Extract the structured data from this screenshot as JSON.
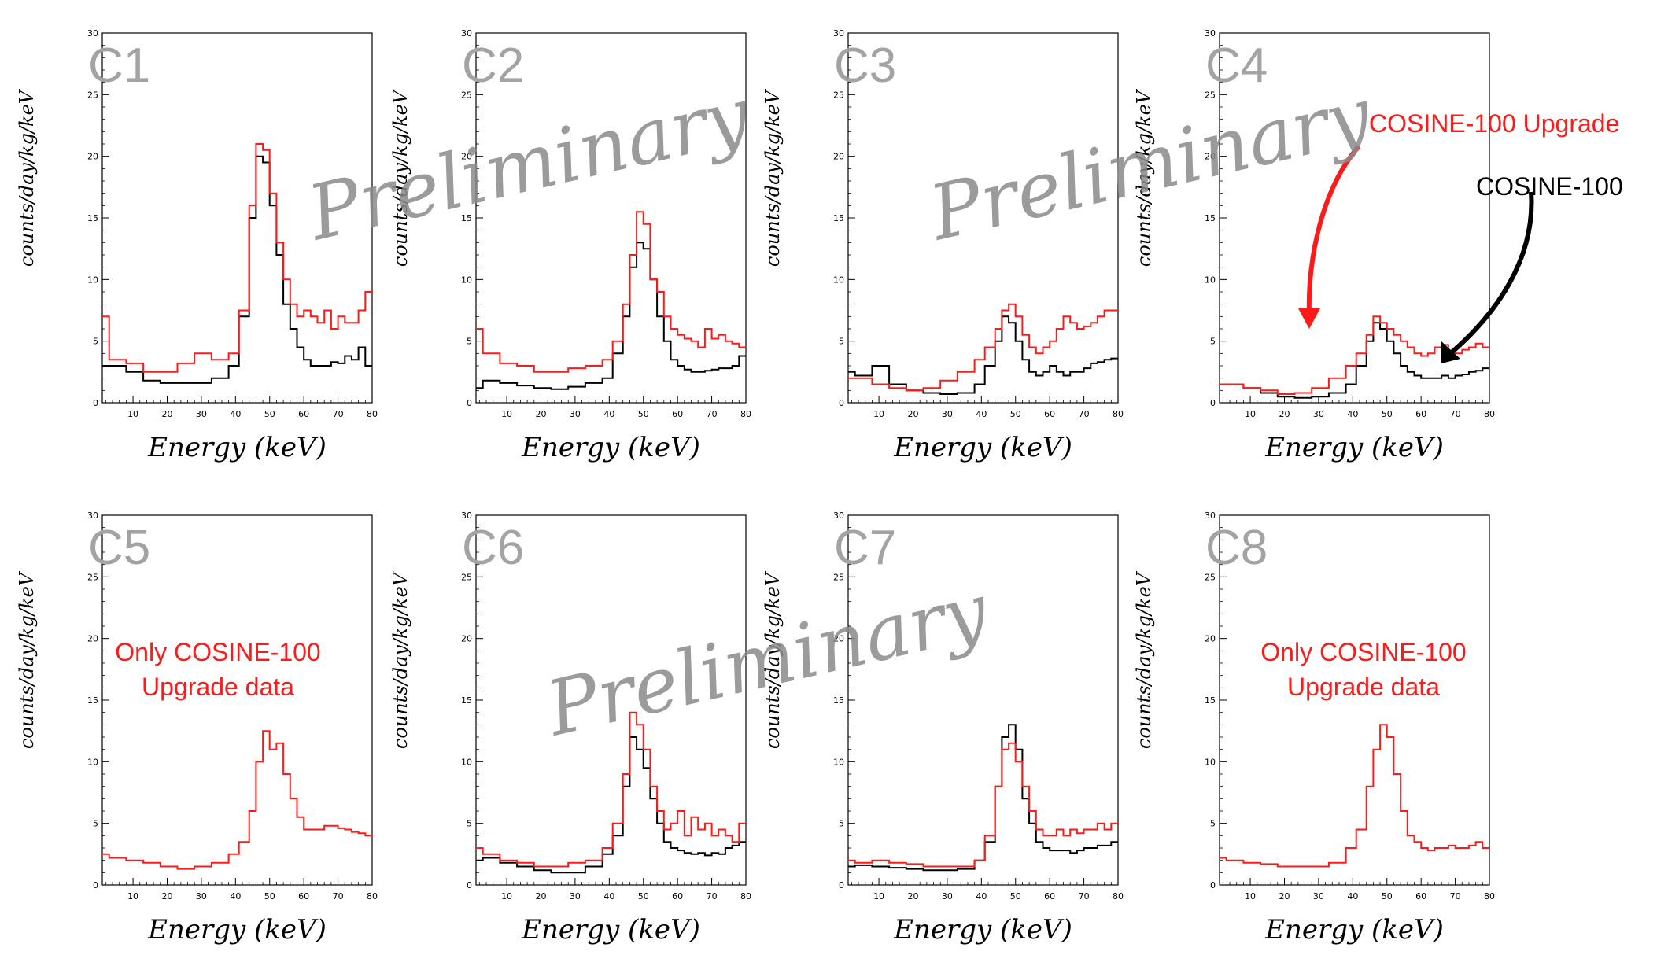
{
  "figure": {
    "watermark_text": "Preliminary",
    "annotations": {
      "upgrade_label": "COSINE-100 Upgrade",
      "cosine_label": "COSINE-100",
      "only_upgrade_line1": "Only COSINE-100",
      "only_upgrade_line2": "Upgrade data"
    },
    "colors": {
      "upgrade": "#ff1a1a",
      "cosine100": "#000000",
      "panel_label": "#a3a3a3",
      "watermark": "#8a8a8a"
    }
  },
  "chart_data": [
    {
      "type": "line",
      "style": "step",
      "title": "C1",
      "xlabel": "Energy   (keV)",
      "ylabel": "counts/day/kg/keV",
      "xlim": [
        1,
        80
      ],
      "ylim": [
        0,
        30
      ],
      "xticks": [
        10,
        20,
        30,
        40,
        50,
        60,
        70,
        80
      ],
      "yticks": [
        0,
        5,
        10,
        15,
        20,
        25,
        30
      ],
      "series": [
        {
          "name": "COSINE-100 Upgrade",
          "color": "#ff1a1a",
          "x": [
            3,
            8,
            13,
            18,
            23,
            28,
            33,
            38,
            41,
            44,
            46,
            48,
            50,
            52,
            54,
            56,
            58,
            60,
            62,
            64,
            66,
            68,
            70,
            72,
            74,
            76,
            78,
            80
          ],
          "y": [
            7,
            3.5,
            3.2,
            2.5,
            2.5,
            3.2,
            4,
            3.5,
            4,
            7.5,
            16,
            21,
            20.5,
            17,
            13,
            10,
            8,
            7,
            7.5,
            7,
            6.5,
            7.5,
            6,
            7,
            6.5,
            6.5,
            7.5,
            9
          ]
        },
        {
          "name": "COSINE-100",
          "color": "#000000",
          "x": [
            3,
            8,
            13,
            18,
            23,
            28,
            33,
            38,
            41,
            44,
            46,
            48,
            50,
            52,
            54,
            56,
            58,
            60,
            62,
            64,
            66,
            68,
            70,
            72,
            74,
            76,
            78,
            80
          ],
          "y": [
            3,
            3,
            2.5,
            1.8,
            1.6,
            1.6,
            1.6,
            2,
            3,
            7,
            15,
            20,
            19.5,
            16,
            12,
            8,
            6,
            4.5,
            3.5,
            3,
            3,
            3,
            3.3,
            3.2,
            3.8,
            3.5,
            4.5,
            3
          ]
        }
      ]
    },
    {
      "type": "line",
      "style": "step",
      "title": "C2",
      "xlabel": "Energy   (keV)",
      "ylabel": "counts/day/kg/keV",
      "xlim": [
        1,
        80
      ],
      "ylim": [
        0,
        30
      ],
      "xticks": [
        10,
        20,
        30,
        40,
        50,
        60,
        70,
        80
      ],
      "yticks": [
        0,
        5,
        10,
        15,
        20,
        25,
        30
      ],
      "series": [
        {
          "name": "COSINE-100 Upgrade",
          "color": "#ff1a1a",
          "x": [
            3,
            8,
            13,
            18,
            23,
            28,
            33,
            38,
            41,
            44,
            46,
            48,
            50,
            52,
            54,
            56,
            58,
            60,
            62,
            64,
            66,
            68,
            70,
            72,
            74,
            76,
            78,
            80
          ],
          "y": [
            6,
            4,
            3.2,
            3,
            2.5,
            2.5,
            2.8,
            3,
            3.5,
            5,
            8,
            12,
            15.5,
            14.5,
            10,
            9,
            7,
            6,
            5.5,
            5.2,
            5,
            4.5,
            6,
            5.2,
            5.5,
            5,
            4.8,
            4.5
          ]
        },
        {
          "name": "COSINE-100",
          "color": "#000000",
          "x": [
            3,
            8,
            13,
            18,
            23,
            28,
            33,
            38,
            41,
            44,
            46,
            48,
            50,
            52,
            54,
            56,
            58,
            60,
            62,
            64,
            66,
            68,
            70,
            72,
            74,
            76,
            78,
            80
          ],
          "y": [
            1.2,
            1.8,
            1.6,
            1.4,
            1.2,
            1.1,
            1.3,
            1.6,
            2,
            4,
            7,
            11,
            13,
            12.5,
            10,
            7,
            5,
            3.5,
            3,
            2.7,
            2.5,
            2.5,
            2.6,
            2.7,
            2.8,
            2.8,
            3,
            3.8
          ]
        }
      ]
    },
    {
      "type": "line",
      "style": "step",
      "title": "C3",
      "xlabel": "Energy   (keV)",
      "ylabel": "counts/day/kg/keV",
      "xlim": [
        1,
        80
      ],
      "ylim": [
        0,
        30
      ],
      "xticks": [
        10,
        20,
        30,
        40,
        50,
        60,
        70,
        80
      ],
      "yticks": [
        0,
        5,
        10,
        15,
        20,
        25,
        30
      ],
      "series": [
        {
          "name": "COSINE-100 Upgrade",
          "color": "#ff1a1a",
          "x": [
            3,
            8,
            13,
            18,
            23,
            28,
            33,
            38,
            41,
            44,
            46,
            48,
            50,
            52,
            54,
            56,
            58,
            60,
            62,
            64,
            66,
            68,
            70,
            72,
            74,
            76,
            78,
            80
          ],
          "y": [
            2,
            2,
            1.5,
            1.2,
            1,
            1.2,
            1.8,
            2.5,
            3.5,
            4.5,
            6,
            7.5,
            8,
            7,
            5.5,
            4.5,
            4,
            4.5,
            5,
            6,
            7,
            6.5,
            6,
            6.2,
            6.5,
            7,
            7.5,
            7.5
          ]
        },
        {
          "name": "COSINE-100",
          "color": "#000000",
          "x": [
            3,
            8,
            13,
            18,
            23,
            28,
            33,
            38,
            41,
            44,
            46,
            48,
            50,
            52,
            54,
            56,
            58,
            60,
            62,
            64,
            66,
            68,
            70,
            72,
            74,
            76,
            78,
            80
          ],
          "y": [
            2.5,
            2.2,
            3,
            1.5,
            1,
            0.8,
            0.7,
            0.8,
            1.5,
            3,
            5,
            7,
            6.5,
            5,
            3.5,
            2.5,
            2.2,
            2.5,
            3,
            2.5,
            2.2,
            2.5,
            2.5,
            2.8,
            3.2,
            3.3,
            3.5,
            3.6
          ]
        }
      ]
    },
    {
      "type": "line",
      "style": "step",
      "title": "C4",
      "xlabel": "Energy   (keV)",
      "ylabel": "counts/day/kg/keV",
      "xlim": [
        1,
        80
      ],
      "ylim": [
        0,
        30
      ],
      "xticks": [
        10,
        20,
        30,
        40,
        50,
        60,
        70,
        80
      ],
      "yticks": [
        0,
        5,
        10,
        15,
        20,
        25,
        30
      ],
      "series": [
        {
          "name": "COSINE-100 Upgrade",
          "color": "#ff1a1a",
          "x": [
            3,
            8,
            13,
            18,
            23,
            28,
            33,
            38,
            41,
            44,
            46,
            48,
            50,
            52,
            54,
            56,
            58,
            60,
            62,
            64,
            66,
            68,
            70,
            72,
            74,
            76,
            78,
            80
          ],
          "y": [
            1.5,
            1.5,
            1.2,
            1,
            0.7,
            0.8,
            1.2,
            2,
            3,
            4,
            5.5,
            7,
            6.5,
            6,
            5.5,
            5,
            4.5,
            4,
            3.8,
            4,
            4.5,
            4.7,
            4.2,
            4,
            4.3,
            4.5,
            4.8,
            4.5
          ]
        },
        {
          "name": "COSINE-100",
          "color": "#000000",
          "x": [
            3,
            8,
            13,
            18,
            23,
            28,
            33,
            38,
            41,
            44,
            46,
            48,
            50,
            52,
            54,
            56,
            58,
            60,
            62,
            64,
            66,
            68,
            70,
            72,
            74,
            76,
            78,
            80
          ],
          "y": [
            1.5,
            1.5,
            1.2,
            0.8,
            0.5,
            0.4,
            0.5,
            0.8,
            1.5,
            3,
            5,
            6.5,
            6,
            5,
            4,
            3,
            2.5,
            2.2,
            2,
            2,
            2,
            2.2,
            2,
            2.2,
            2.3,
            2.5,
            2.6,
            2.8
          ]
        }
      ]
    },
    {
      "type": "line",
      "style": "step",
      "title": "C5",
      "xlabel": "Energy   (keV)",
      "ylabel": "counts/day/kg/keV",
      "xlim": [
        1,
        80
      ],
      "ylim": [
        0,
        30
      ],
      "xticks": [
        10,
        20,
        30,
        40,
        50,
        60,
        70,
        80
      ],
      "yticks": [
        0,
        5,
        10,
        15,
        20,
        25,
        30
      ],
      "series": [
        {
          "name": "COSINE-100 Upgrade",
          "color": "#ff1a1a",
          "x": [
            3,
            8,
            13,
            18,
            23,
            28,
            33,
            38,
            41,
            44,
            46,
            48,
            50,
            52,
            54,
            56,
            58,
            60,
            62,
            64,
            66,
            68,
            70,
            72,
            74,
            76,
            78,
            80
          ],
          "y": [
            2.5,
            2.2,
            2,
            1.8,
            1.5,
            1.3,
            1.5,
            1.8,
            2.5,
            3.5,
            6,
            10,
            12.5,
            11,
            11.5,
            9,
            7,
            5.5,
            4.5,
            4.5,
            4.5,
            4.8,
            4.8,
            4.6,
            4.5,
            4.3,
            4.2,
            4
          ]
        }
      ]
    },
    {
      "type": "line",
      "style": "step",
      "title": "C6",
      "xlabel": "Energy   (keV)",
      "ylabel": "counts/day/kg/keV",
      "xlim": [
        1,
        80
      ],
      "ylim": [
        0,
        30
      ],
      "xticks": [
        10,
        20,
        30,
        40,
        50,
        60,
        70,
        80
      ],
      "yticks": [
        0,
        5,
        10,
        15,
        20,
        25,
        30
      ],
      "series": [
        {
          "name": "COSINE-100 Upgrade",
          "color": "#ff1a1a",
          "x": [
            3,
            8,
            13,
            18,
            23,
            28,
            33,
            38,
            41,
            44,
            46,
            48,
            50,
            52,
            54,
            56,
            58,
            60,
            62,
            64,
            66,
            68,
            70,
            72,
            74,
            76,
            78,
            80
          ],
          "y": [
            3,
            2.5,
            2,
            1.8,
            1.5,
            1.5,
            1.8,
            2,
            3,
            5,
            9,
            14,
            13,
            11,
            8,
            6,
            4.5,
            5,
            6,
            4,
            5.5,
            4.5,
            5,
            4,
            4.5,
            4,
            3.5,
            5
          ]
        },
        {
          "name": "COSINE-100",
          "color": "#000000",
          "x": [
            3,
            8,
            13,
            18,
            23,
            28,
            33,
            38,
            41,
            44,
            46,
            48,
            50,
            52,
            54,
            56,
            58,
            60,
            62,
            64,
            66,
            68,
            70,
            72,
            74,
            76,
            78,
            80
          ],
          "y": [
            2,
            2.2,
            1.8,
            1.5,
            1.2,
            1,
            1,
            1.5,
            2.5,
            4,
            8,
            12,
            11,
            9.5,
            7,
            5,
            3.5,
            3,
            2.8,
            2.6,
            2.5,
            2.6,
            2.4,
            2.6,
            2.5,
            3,
            3.2,
            3.5
          ]
        }
      ]
    },
    {
      "type": "line",
      "style": "step",
      "title": "C7",
      "xlabel": "Energy   (keV)",
      "ylabel": "counts/day/kg/keV",
      "xlim": [
        1,
        80
      ],
      "ylim": [
        0,
        30
      ],
      "xticks": [
        10,
        20,
        30,
        40,
        50,
        60,
        70,
        80
      ],
      "yticks": [
        0,
        5,
        10,
        15,
        20,
        25,
        30
      ],
      "series": [
        {
          "name": "COSINE-100 Upgrade",
          "color": "#ff1a1a",
          "x": [
            3,
            8,
            13,
            18,
            23,
            28,
            33,
            38,
            41,
            44,
            46,
            48,
            50,
            52,
            54,
            56,
            58,
            60,
            62,
            64,
            66,
            68,
            70,
            72,
            74,
            76,
            78,
            80
          ],
          "y": [
            2,
            1.8,
            2,
            1.8,
            1.7,
            1.5,
            1.5,
            1.5,
            2,
            4,
            8,
            11,
            11.5,
            10,
            8,
            6,
            4.5,
            4,
            4,
            4.5,
            4,
            4.5,
            4.2,
            4.5,
            4.5,
            5,
            4.5,
            5
          ]
        },
        {
          "name": "COSINE-100",
          "color": "#000000",
          "x": [
            3,
            8,
            13,
            18,
            23,
            28,
            33,
            38,
            41,
            44,
            46,
            48,
            50,
            52,
            54,
            56,
            58,
            60,
            62,
            64,
            66,
            68,
            70,
            72,
            74,
            76,
            78,
            80
          ],
          "y": [
            1.5,
            1.6,
            1.5,
            1.4,
            1.3,
            1.2,
            1.2,
            1.3,
            2,
            3.5,
            8,
            12,
            13,
            11,
            7,
            5,
            3.5,
            3,
            2.8,
            2.8,
            2.8,
            2.6,
            2.8,
            3,
            3,
            3.2,
            3.2,
            3.5
          ]
        }
      ]
    },
    {
      "type": "line",
      "style": "step",
      "title": "C8",
      "xlabel": "Energy   (keV)",
      "ylabel": "counts/day/kg/keV",
      "xlim": [
        1,
        80
      ],
      "ylim": [
        0,
        30
      ],
      "xticks": [
        10,
        20,
        30,
        40,
        50,
        60,
        70,
        80
      ],
      "yticks": [
        0,
        5,
        10,
        15,
        20,
        25,
        30
      ],
      "series": [
        {
          "name": "COSINE-100 Upgrade",
          "color": "#ff1a1a",
          "x": [
            3,
            8,
            13,
            18,
            23,
            28,
            33,
            38,
            41,
            44,
            46,
            48,
            50,
            52,
            54,
            56,
            58,
            60,
            62,
            64,
            66,
            68,
            70,
            72,
            74,
            76,
            78,
            80
          ],
          "y": [
            2.2,
            2,
            1.8,
            1.7,
            1.5,
            1.5,
            1.5,
            1.8,
            3,
            4.5,
            8,
            11,
            13,
            12,
            9,
            6,
            4,
            3.5,
            3,
            2.8,
            3,
            3,
            3.2,
            3,
            3,
            3.2,
            3.5,
            3
          ]
        }
      ]
    }
  ]
}
